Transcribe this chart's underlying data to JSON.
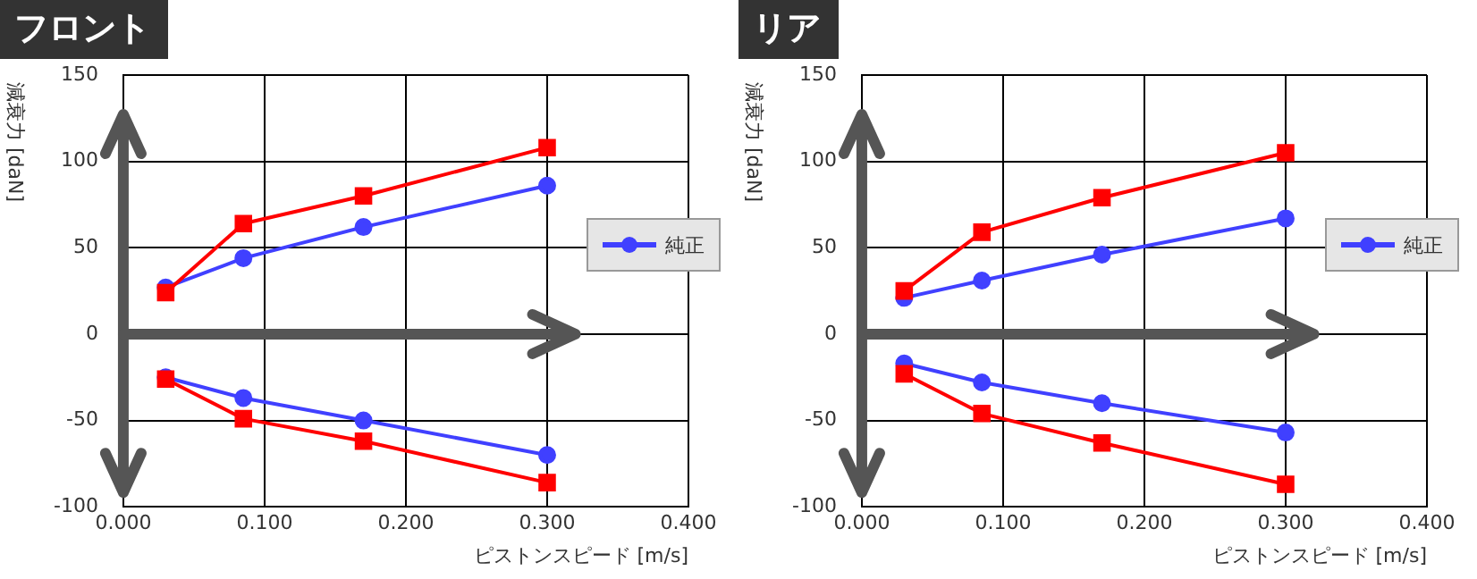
{
  "chart_data": [
    {
      "type": "line",
      "title": "フロント",
      "xlabel": "ピストンスピード [m/s]",
      "ylabel": "減衰力 [daN]",
      "xlim": [
        0,
        0.4
      ],
      "xticks": [
        {
          "value": 0,
          "label": "0.000"
        },
        {
          "value": 0.1,
          "label": "0.100"
        },
        {
          "value": 0.2,
          "label": "0.200"
        },
        {
          "value": 0.3,
          "label": "0.300"
        },
        {
          "value": 0.4,
          "label": "0.400"
        }
      ],
      "ylim": [
        -100,
        150
      ],
      "yticks": [
        -100,
        -50,
        0,
        50,
        100,
        150
      ],
      "grid": true,
      "legend": "right",
      "series": [
        {
          "color": "#ff0000",
          "marker": "square",
          "x": [
            0.03,
            0.085,
            0.17,
            0.3,
            null,
            0.03,
            0.085,
            0.17,
            0.3
          ],
          "values": [
            24,
            64,
            80,
            108,
            null,
            -26,
            -49,
            -62,
            -86
          ]
        },
        {
          "name": "純正",
          "color": "#4040ff",
          "marker": "circle",
          "x": [
            0.03,
            0.085,
            0.17,
            0.3,
            null,
            0.03,
            0.085,
            0.17,
            0.3
          ],
          "values": [
            27,
            44,
            62,
            86,
            null,
            -25,
            -37,
            -50,
            -70
          ]
        }
      ]
    },
    {
      "type": "line",
      "title": "リア",
      "xlabel": "ピストンスピード [m/s]",
      "ylabel": "減衰力 [daN]",
      "xlim": [
        0,
        0.4
      ],
      "xticks": [
        {
          "value": 0,
          "label": "0.000"
        },
        {
          "value": 0.1,
          "label": "0.100"
        },
        {
          "value": 0.2,
          "label": "0.200"
        },
        {
          "value": 0.3,
          "label": "0.300"
        },
        {
          "value": 0.4,
          "label": "0.400"
        }
      ],
      "ylim": [
        -100,
        150
      ],
      "yticks": [
        -100,
        -50,
        0,
        50,
        100,
        150
      ],
      "grid": true,
      "legend": "right",
      "series": [
        {
          "color": "#ff0000",
          "marker": "square",
          "x": [
            0.03,
            0.085,
            0.17,
            0.3,
            null,
            0.03,
            0.085,
            0.17,
            0.3
          ],
          "values": [
            25,
            59,
            79,
            105,
            null,
            -23,
            -46,
            -63,
            -87
          ]
        },
        {
          "name": "純正",
          "color": "#4040ff",
          "marker": "circle",
          "x": [
            0.03,
            0.085,
            0.17,
            0.3,
            null,
            0.03,
            0.085,
            0.17,
            0.3
          ],
          "values": [
            21,
            31,
            46,
            67,
            null,
            -17,
            -28,
            -40,
            -57
          ]
        }
      ]
    }
  ]
}
